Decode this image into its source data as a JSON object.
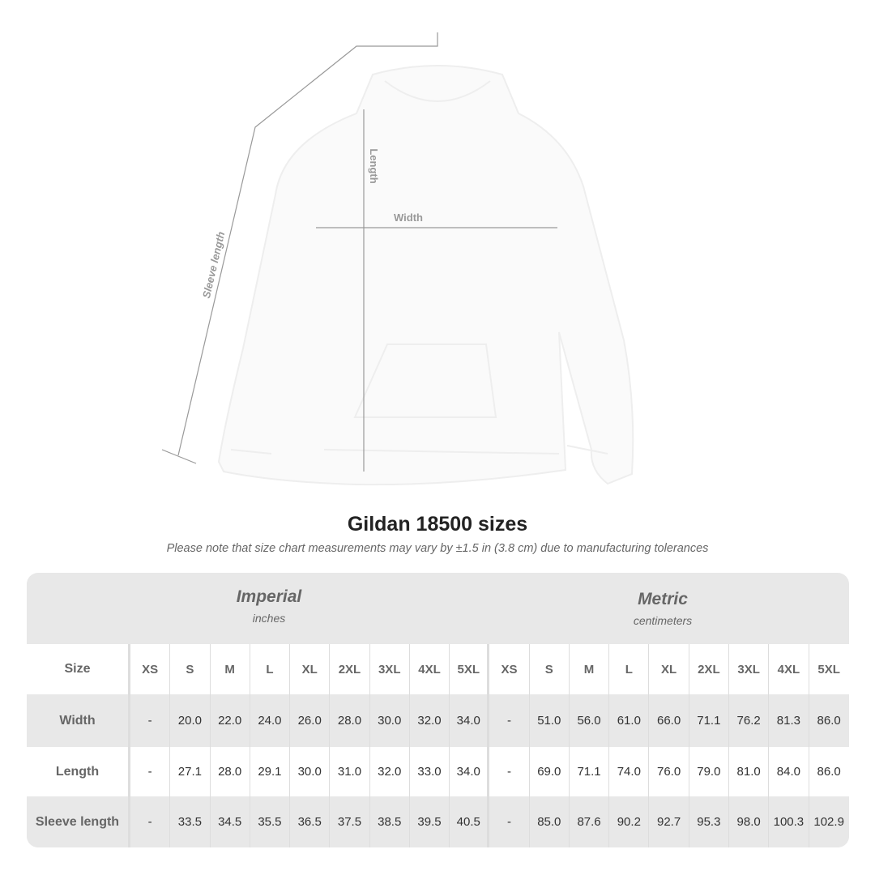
{
  "diagram": {
    "labels": {
      "length": "Length",
      "width": "Width",
      "sleeve": "Sleeve length"
    }
  },
  "title": "Gildan 18500 sizes",
  "note": "Please note that size chart measurements may vary by ±1.5 in (3.8 cm) due to manufacturing tolerances",
  "table": {
    "imperial": {
      "name": "Imperial",
      "unit": "inches"
    },
    "metric": {
      "name": "Metric",
      "unit": "centimeters"
    },
    "sizes": [
      "XS",
      "S",
      "M",
      "L",
      "XL",
      "2XL",
      "3XL",
      "4XL",
      "5XL"
    ],
    "size_label": "Size",
    "rows": [
      {
        "label": "Width",
        "imperial": [
          "-",
          "20.0",
          "22.0",
          "24.0",
          "26.0",
          "28.0",
          "30.0",
          "32.0",
          "34.0"
        ],
        "metric": [
          "-",
          "51.0",
          "56.0",
          "61.0",
          "66.0",
          "71.1",
          "76.2",
          "81.3",
          "86.0"
        ]
      },
      {
        "label": "Length",
        "imperial": [
          "-",
          "27.1",
          "28.0",
          "29.1",
          "30.0",
          "31.0",
          "32.0",
          "33.0",
          "34.0"
        ],
        "metric": [
          "-",
          "69.0",
          "71.1",
          "74.0",
          "76.0",
          "79.0",
          "81.0",
          "84.0",
          "86.0"
        ]
      },
      {
        "label": "Sleeve length",
        "imperial": [
          "-",
          "33.5",
          "34.5",
          "35.5",
          "36.5",
          "37.5",
          "38.5",
          "39.5",
          "40.5"
        ],
        "metric": [
          "-",
          "85.0",
          "87.6",
          "90.2",
          "92.7",
          "95.3",
          "98.0",
          "100.3",
          "102.9"
        ]
      }
    ]
  }
}
